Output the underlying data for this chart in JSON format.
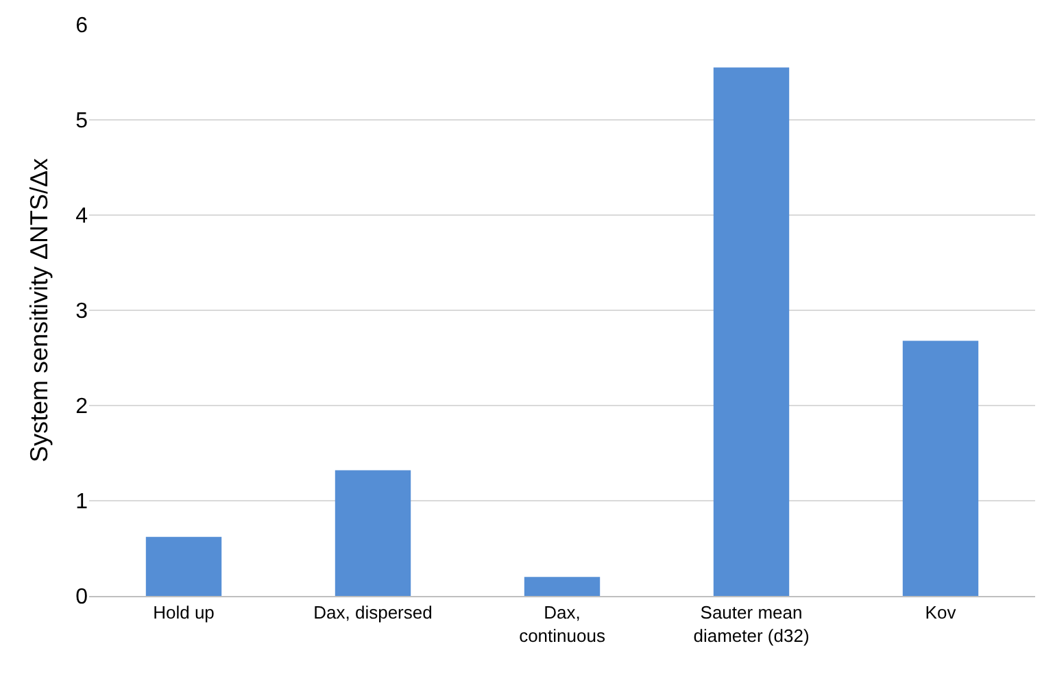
{
  "chart_data": {
    "type": "bar",
    "ylabel": "System sensitivity ΔNTS/Δx",
    "categories": [
      "Hold up",
      "Dax, dispersed",
      "Dax,\ncontinuous",
      "Sauter mean\ndiameter (d32)",
      "Kov"
    ],
    "values": [
      0.62,
      1.32,
      0.2,
      5.55,
      2.68
    ],
    "color": "#558ed5",
    "ylim": [
      0,
      6
    ],
    "yticks": [
      0,
      1,
      2,
      3,
      4,
      5,
      6
    ],
    "grid": "y"
  }
}
